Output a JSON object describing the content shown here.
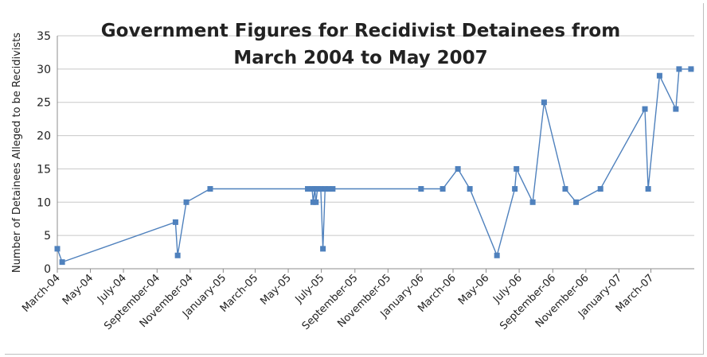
{
  "chart_data": {
    "type": "line",
    "title": [
      "Government Figures for Recidivist Detainees from",
      "March 2004 to May 2007"
    ],
    "xlabel": "",
    "ylabel": "Number of Detainees Alleged to be Recidivists",
    "ylim": [
      0,
      35
    ],
    "yticks": [
      "0",
      "5",
      "10",
      "15",
      "20",
      "25",
      "30",
      "35"
    ],
    "xlim": [
      "2004-03-01",
      "2007-05-20"
    ],
    "xticks": [
      {
        "date": "2004-03-01",
        "label": "March-04"
      },
      {
        "date": "2004-05-01",
        "label": "May-04"
      },
      {
        "date": "2004-07-01",
        "label": "July-04"
      },
      {
        "date": "2004-09-01",
        "label": "September-04"
      },
      {
        "date": "2004-11-01",
        "label": "November-04"
      },
      {
        "date": "2005-01-01",
        "label": "January-05"
      },
      {
        "date": "2005-03-01",
        "label": "March-05"
      },
      {
        "date": "2005-05-01",
        "label": "May-05"
      },
      {
        "date": "2005-07-01",
        "label": "July-05"
      },
      {
        "date": "2005-09-01",
        "label": "September-05"
      },
      {
        "date": "2005-11-01",
        "label": "November-05"
      },
      {
        "date": "2006-01-01",
        "label": "January-06"
      },
      {
        "date": "2006-03-01",
        "label": "March-06"
      },
      {
        "date": "2006-05-01",
        "label": "May-06"
      },
      {
        "date": "2006-07-01",
        "label": "July-06"
      },
      {
        "date": "2006-09-01",
        "label": "September-06"
      },
      {
        "date": "2006-11-01",
        "label": "November-06"
      },
      {
        "date": "2007-01-01",
        "label": "January-07"
      },
      {
        "date": "2007-03-01",
        "label": "March-07"
      }
    ],
    "grid": true,
    "color": "#4f81bd",
    "series": [
      {
        "points": [
          {
            "x": "2004-03-01",
            "y": 3
          },
          {
            "x": "2004-03-10",
            "y": 1
          },
          {
            "x": "2004-10-05",
            "y": 7
          },
          {
            "x": "2004-10-09",
            "y": 2
          },
          {
            "x": "2004-10-25",
            "y": 10
          },
          {
            "x": "2004-12-08",
            "y": 12
          },
          {
            "x": "2005-06-06",
            "y": 12
          },
          {
            "x": "2005-06-14",
            "y": 12
          },
          {
            "x": "2005-06-16",
            "y": 10
          },
          {
            "x": "2005-06-19",
            "y": 12
          },
          {
            "x": "2005-06-21",
            "y": 10
          },
          {
            "x": "2005-06-24",
            "y": 12
          },
          {
            "x": "2005-06-30",
            "y": 12
          },
          {
            "x": "2005-07-04",
            "y": 3
          },
          {
            "x": "2005-07-08",
            "y": 12
          },
          {
            "x": "2005-07-15",
            "y": 12
          },
          {
            "x": "2005-07-22",
            "y": 12
          },
          {
            "x": "2006-01-01",
            "y": 12
          },
          {
            "x": "2006-02-10",
            "y": 12
          },
          {
            "x": "2006-03-10",
            "y": 15
          },
          {
            "x": "2006-04-01",
            "y": 12
          },
          {
            "x": "2006-05-21",
            "y": 2
          },
          {
            "x": "2006-06-23",
            "y": 12
          },
          {
            "x": "2006-06-26",
            "y": 15
          },
          {
            "x": "2006-07-26",
            "y": 10
          },
          {
            "x": "2006-08-16",
            "y": 25
          },
          {
            "x": "2006-09-24",
            "y": 12
          },
          {
            "x": "2006-10-14",
            "y": 10
          },
          {
            "x": "2006-11-28",
            "y": 12
          },
          {
            "x": "2007-02-18",
            "y": 24
          },
          {
            "x": "2007-02-24",
            "y": 12
          },
          {
            "x": "2007-03-17",
            "y": 29
          },
          {
            "x": "2007-04-16",
            "y": 24
          },
          {
            "x": "2007-04-22",
            "y": 30
          },
          {
            "x": "2007-05-14",
            "y": 30
          }
        ]
      }
    ]
  }
}
